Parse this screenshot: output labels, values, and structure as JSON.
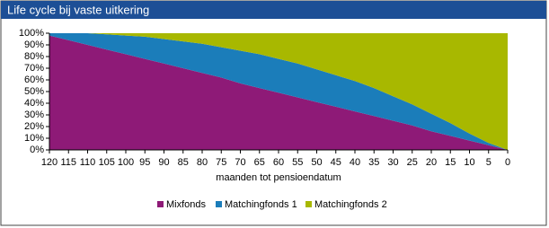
{
  "chart_data": {
    "type": "area",
    "stacked": true,
    "title": "Life cycle bij vaste uitkering",
    "x_label": "maanden tot pensioendatum",
    "x": [
      120,
      115,
      110,
      105,
      100,
      95,
      90,
      85,
      80,
      75,
      70,
      65,
      60,
      55,
      50,
      45,
      40,
      35,
      30,
      25,
      20,
      15,
      10,
      5,
      0
    ],
    "xlim": [
      120,
      0
    ],
    "xticks": [
      120,
      115,
      110,
      105,
      100,
      95,
      90,
      85,
      80,
      75,
      70,
      65,
      60,
      55,
      50,
      45,
      40,
      35,
      30,
      25,
      20,
      15,
      10,
      5,
      0
    ],
    "ylim": [
      0,
      100
    ],
    "yticks": [
      {
        "value": 0,
        "label": "0%"
      },
      {
        "value": 10,
        "label": "10%"
      },
      {
        "value": 20,
        "label": "20%"
      },
      {
        "value": 30,
        "label": "30%"
      },
      {
        "value": 40,
        "label": "40%"
      },
      {
        "value": 50,
        "label": "50%"
      },
      {
        "value": 60,
        "label": "60%"
      },
      {
        "value": 70,
        "label": "70%"
      },
      {
        "value": 80,
        "label": "80%"
      },
      {
        "value": 90,
        "label": "90%"
      },
      {
        "value": 100,
        "label": "100%"
      }
    ],
    "legend": "bottom",
    "series": [
      {
        "name": "Mixfonds",
        "color": "#8e1a77",
        "values": [
          98,
          94,
          90,
          86,
          82,
          78,
          74,
          70,
          66,
          62,
          57,
          53,
          49,
          45,
          41,
          37,
          33,
          29,
          25,
          21,
          16,
          12,
          8,
          4,
          0
        ]
      },
      {
        "name": "Matchingfonds 1",
        "color": "#1b7dba",
        "values": [
          2,
          6,
          10,
          13,
          16,
          19,
          21,
          23,
          25,
          26,
          28,
          29,
          29,
          29,
          28,
          27,
          26,
          24,
          21,
          18,
          15,
          11,
          6,
          2,
          0
        ]
      },
      {
        "name": "Matchingfonds 2",
        "color": "#a8b800",
        "values": [
          0,
          0,
          0,
          1,
          2,
          3,
          5,
          7,
          9,
          12,
          15,
          18,
          22,
          26,
          31,
          36,
          41,
          47,
          54,
          61,
          69,
          77,
          86,
          94,
          100
        ]
      }
    ]
  }
}
